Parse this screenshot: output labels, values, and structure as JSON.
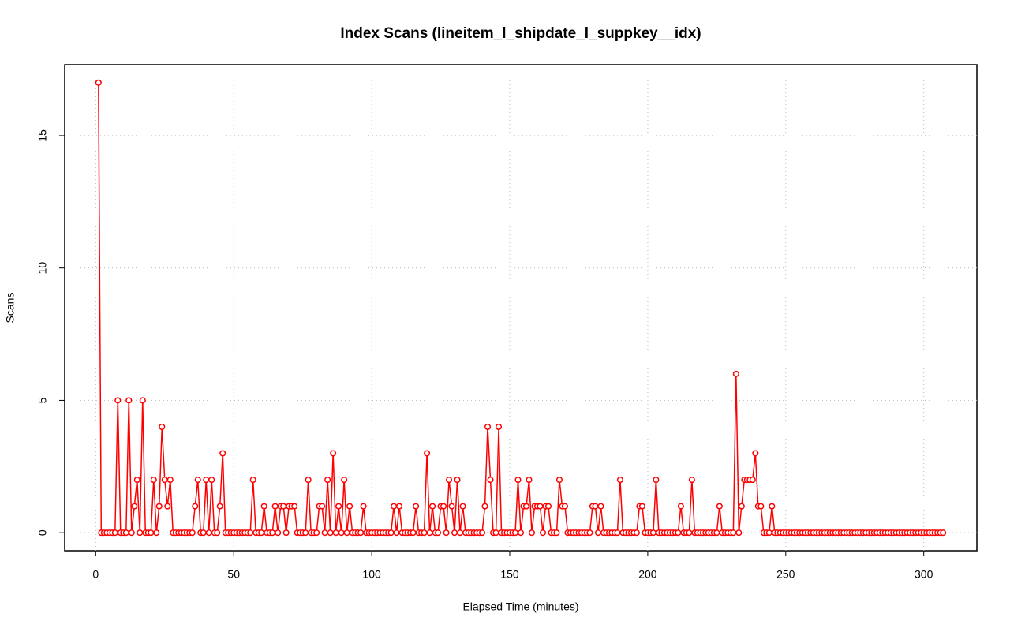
{
  "chart_data": {
    "type": "line",
    "title": "Index Scans (lineitem_l_shipdate_l_suppkey__idx)",
    "x_label": "Elapsed Time (minutes)",
    "y_label": "Scans",
    "xlim": [
      -11.24,
      319.24
    ],
    "ylim": [
      -0.68,
      17.68
    ],
    "xticks": [
      0,
      50,
      100,
      150,
      200,
      250,
      300
    ],
    "yticks": [
      0,
      5,
      10,
      15
    ],
    "grid": true,
    "x": [
      1,
      2,
      3,
      4,
      5,
      6,
      7,
      8,
      9,
      10,
      11,
      12,
      13,
      14,
      15,
      16,
      17,
      18,
      19,
      20,
      21,
      22,
      23,
      24,
      25,
      26,
      27,
      28,
      29,
      30,
      31,
      32,
      33,
      34,
      35,
      36,
      37,
      38,
      39,
      40,
      41,
      42,
      43,
      44,
      45,
      46,
      47,
      48,
      49,
      50,
      51,
      52,
      53,
      54,
      55,
      56,
      57,
      58,
      59,
      60,
      61,
      62,
      63,
      64,
      65,
      66,
      67,
      68,
      69,
      70,
      71,
      72,
      73,
      74,
      75,
      76,
      77,
      78,
      79,
      80,
      81,
      82,
      83,
      84,
      85,
      86,
      87,
      88,
      89,
      90,
      91,
      92,
      93,
      94,
      95,
      96,
      97,
      98,
      99,
      100,
      101,
      102,
      103,
      104,
      105,
      106,
      107,
      108,
      109,
      110,
      111,
      112,
      113,
      114,
      115,
      116,
      117,
      118,
      119,
      120,
      121,
      122,
      123,
      124,
      125,
      126,
      127,
      128,
      129,
      130,
      131,
      132,
      133,
      134,
      135,
      136,
      137,
      138,
      139,
      140,
      141,
      142,
      143,
      144,
      145,
      146,
      147,
      148,
      149,
      150,
      151,
      152,
      153,
      154,
      155,
      156,
      157,
      158,
      159,
      160,
      161,
      162,
      163,
      164,
      165,
      166,
      167,
      168,
      169,
      170,
      171,
      172,
      173,
      174,
      175,
      176,
      177,
      178,
      179,
      180,
      181,
      182,
      183,
      184,
      185,
      186,
      187,
      188,
      189,
      190,
      191,
      192,
      193,
      194,
      195,
      196,
      197,
      198,
      199,
      200,
      201,
      202,
      203,
      204,
      205,
      206,
      207,
      208,
      209,
      210,
      211,
      212,
      213,
      214,
      215,
      216,
      217,
      218,
      219,
      220,
      221,
      222,
      223,
      224,
      225,
      226,
      227,
      228,
      229,
      230,
      231,
      232,
      233,
      234,
      235,
      236,
      237,
      238,
      239,
      240,
      241,
      242,
      243,
      244,
      245,
      246,
      247,
      248,
      249,
      250,
      251,
      252,
      253,
      254,
      255,
      256,
      257,
      258,
      259,
      260,
      261,
      262,
      263,
      264,
      265,
      266,
      267,
      268,
      269,
      270,
      271,
      272,
      273,
      274,
      275,
      276,
      277,
      278,
      279,
      280,
      281,
      282,
      283,
      284,
      285,
      286,
      287,
      288,
      289,
      290,
      291,
      292,
      293,
      294,
      295,
      296,
      297,
      298,
      299,
      300,
      301,
      302,
      303,
      304,
      305,
      306,
      307
    ],
    "series": [
      {
        "color": "#ff0000",
        "values": [
          17,
          0,
          0,
          0,
          0,
          0,
          0,
          5,
          0,
          0,
          0,
          5,
          0,
          1,
          2,
          0,
          5,
          0,
          0,
          0,
          2,
          0,
          1,
          4,
          2,
          1,
          2,
          0,
          0,
          0,
          0,
          0,
          0,
          0,
          0,
          1,
          2,
          0,
          0,
          2,
          0,
          2,
          0,
          0,
          1,
          3,
          0,
          0,
          0,
          0,
          0,
          0,
          0,
          0,
          0,
          0,
          2,
          0,
          0,
          0,
          1,
          0,
          0,
          0,
          1,
          0,
          1,
          1,
          0,
          1,
          1,
          1,
          0,
          0,
          0,
          0,
          2,
          0,
          0,
          0,
          1,
          1,
          0,
          2,
          0,
          3,
          0,
          1,
          0,
          2,
          0,
          1,
          0,
          0,
          0,
          0,
          1,
          0,
          0,
          0,
          0,
          0,
          0,
          0,
          0,
          0,
          0,
          1,
          0,
          1,
          0,
          0,
          0,
          0,
          0,
          1,
          0,
          0,
          0,
          3,
          0,
          1,
          0,
          0,
          1,
          1,
          0,
          2,
          1,
          0,
          2,
          0,
          1,
          0,
          0,
          0,
          0,
          0,
          0,
          0,
          1,
          4,
          2,
          0,
          0,
          4,
          0,
          0,
          0,
          0,
          0,
          0,
          2,
          0,
          1,
          1,
          2,
          0,
          1,
          1,
          1,
          0,
          1,
          1,
          0,
          0,
          0,
          2,
          1,
          1,
          0,
          0,
          0,
          0,
          0,
          0,
          0,
          0,
          0,
          1,
          1,
          0,
          1,
          0,
          0,
          0,
          0,
          0,
          0,
          2,
          0,
          0,
          0,
          0,
          0,
          0,
          1,
          1,
          0,
          0,
          0,
          0,
          2,
          0,
          0,
          0,
          0,
          0,
          0,
          0,
          0,
          1,
          0,
          0,
          0,
          2,
          0,
          0,
          0,
          0,
          0,
          0,
          0,
          0,
          0,
          1,
          0,
          0,
          0,
          0,
          0,
          6,
          0,
          1,
          2,
          2,
          2,
          2,
          3,
          1,
          1,
          0,
          0,
          0,
          1,
          0,
          0,
          0,
          0,
          0,
          0,
          0,
          0,
          0,
          0,
          0,
          0,
          0,
          0,
          0,
          0,
          0,
          0,
          0,
          0,
          0,
          0,
          0,
          0,
          0,
          0,
          0,
          0,
          0,
          0,
          0,
          0,
          0,
          0,
          0,
          0,
          0,
          0,
          0,
          0,
          0,
          0,
          0,
          0,
          0,
          0,
          0,
          0,
          0,
          0,
          0,
          0,
          0,
          0,
          0,
          0,
          0,
          0,
          0,
          0,
          0,
          0
        ]
      }
    ]
  }
}
